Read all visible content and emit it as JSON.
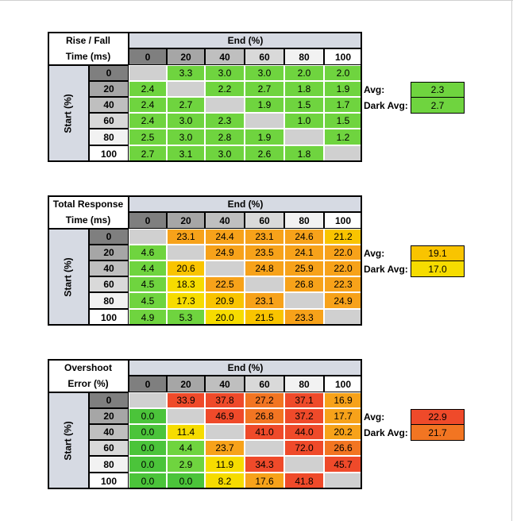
{
  "colors": {
    "header_bg": "#d6dae3",
    "diag": "#d0d0d0",
    "green": "#6fd43f",
    "green_dark": "#4bc43a",
    "yellow": "#f6dc00",
    "orange_light": "#f9c400",
    "orange": "#f7a21a",
    "orange_red": "#f27522",
    "red": "#ef4a2a"
  },
  "chart_data": [
    {
      "type": "table",
      "title_line1": "Rise / Fall",
      "title_line2": "Time (ms)",
      "col_header": "End (%)",
      "row_header": "Start (%)",
      "levels": [
        "0",
        "20",
        "40",
        "60",
        "80",
        "100"
      ],
      "values": [
        [
          null,
          3.3,
          3.0,
          3.0,
          2.0,
          2.0
        ],
        [
          2.4,
          null,
          2.2,
          2.7,
          1.8,
          1.9
        ],
        [
          2.4,
          2.7,
          null,
          1.9,
          1.5,
          1.7
        ],
        [
          2.4,
          3.0,
          2.3,
          null,
          1.0,
          1.5
        ],
        [
          2.5,
          3.0,
          2.8,
          1.9,
          null,
          1.2
        ],
        [
          2.7,
          3.1,
          3.0,
          2.6,
          1.8,
          null
        ]
      ],
      "avg_label": "Avg:",
      "avg": "2.3",
      "dark_avg_label": "Dark Avg:",
      "dark_avg": "2.7"
    },
    {
      "type": "table",
      "title_line1": "Total Response",
      "title_line2": "Time (ms)",
      "col_header": "End (%)",
      "row_header": "Start (%)",
      "levels": [
        "0",
        "20",
        "40",
        "60",
        "80",
        "100"
      ],
      "values": [
        [
          null,
          23.1,
          24.4,
          23.1,
          24.6,
          21.2
        ],
        [
          4.6,
          null,
          24.9,
          23.5,
          24.1,
          22.0
        ],
        [
          4.4,
          20.6,
          null,
          24.8,
          25.9,
          22.0
        ],
        [
          4.5,
          18.3,
          22.5,
          null,
          26.8,
          22.3
        ],
        [
          4.5,
          17.3,
          20.9,
          23.1,
          null,
          24.9
        ],
        [
          4.9,
          5.3,
          20.0,
          21.5,
          23.3,
          null
        ]
      ],
      "avg_label": "Avg:",
      "avg": "19.1",
      "dark_avg_label": "Dark Avg:",
      "dark_avg": "17.0"
    },
    {
      "type": "table",
      "title_line1": "Overshoot",
      "title_line2": "Error (%)",
      "col_header": "End (%)",
      "row_header": "Start (%)",
      "levels": [
        "0",
        "20",
        "40",
        "60",
        "80",
        "100"
      ],
      "values": [
        [
          null,
          33.9,
          37.8,
          27.2,
          37.1,
          16.9
        ],
        [
          0.0,
          null,
          46.9,
          26.8,
          37.2,
          17.7
        ],
        [
          0.0,
          11.4,
          null,
          41.0,
          44.0,
          20.2
        ],
        [
          0.0,
          4.4,
          23.7,
          null,
          72.0,
          26.6
        ],
        [
          0.0,
          2.9,
          11.9,
          34.3,
          null,
          45.7
        ],
        [
          0.0,
          0.0,
          8.2,
          17.6,
          41.8,
          null
        ]
      ],
      "avg_label": "Avg:",
      "avg": "22.9",
      "dark_avg_label": "Dark Avg:",
      "dark_avg": "21.7"
    }
  ]
}
